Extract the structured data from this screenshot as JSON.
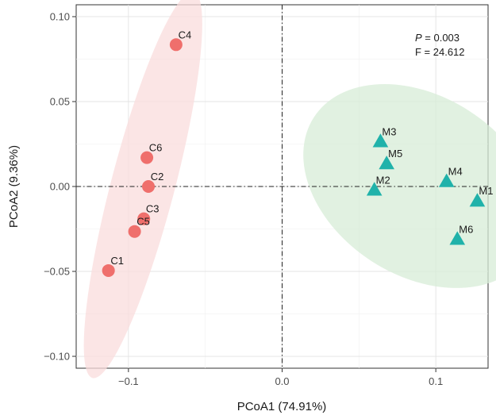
{
  "chart_data": {
    "type": "scatter",
    "xlabel": "PCoA1 (74.91%)",
    "ylabel": "PCoA2 (9.36%)",
    "xlim": [
      -0.134,
      0.134
    ],
    "ylim": [
      -0.107,
      0.107
    ],
    "x_ticks": [
      -0.1,
      0.0,
      0.1
    ],
    "x_tick_labels": [
      "−0.1",
      "0.0",
      "0.1"
    ],
    "y_ticks": [
      -0.1,
      -0.05,
      0.0,
      0.05,
      0.1
    ],
    "y_tick_labels": [
      "−0.10",
      "−0.05",
      "0.00",
      "0.05",
      "0.10"
    ],
    "grid": true,
    "reference_lines": {
      "x": 0,
      "y": 0,
      "style": "dash-dot"
    },
    "annotation": {
      "p_label": "P",
      "p_value": " = 0.003",
      "f_text": "F = 24.612"
    },
    "groups": [
      {
        "marker": "circle",
        "color": "#ef6f6c",
        "ellipse_color": "#f9dcdc",
        "points": [
          {
            "label": "C1",
            "x": -0.113,
            "y": -0.0495
          },
          {
            "label": "C2",
            "x": -0.087,
            "y": 0.0
          },
          {
            "label": "C3",
            "x": -0.09,
            "y": -0.019
          },
          {
            "label": "C4",
            "x": -0.069,
            "y": 0.0835
          },
          {
            "label": "C5",
            "x": -0.096,
            "y": -0.0265
          },
          {
            "label": "C6",
            "x": -0.088,
            "y": 0.017
          }
        ]
      },
      {
        "marker": "triangle",
        "color": "#20b2aa",
        "ellipse_color": "#d7ecd7",
        "points": [
          {
            "label": "M1",
            "x": 0.127,
            "y": -0.0085
          },
          {
            "label": "M2",
            "x": 0.06,
            "y": -0.002
          },
          {
            "label": "M3",
            "x": 0.064,
            "y": 0.0265
          },
          {
            "label": "M4",
            "x": 0.107,
            "y": 0.003
          },
          {
            "label": "M5",
            "x": 0.068,
            "y": 0.0135
          },
          {
            "label": "M6",
            "x": 0.114,
            "y": -0.031
          }
        ]
      }
    ]
  }
}
